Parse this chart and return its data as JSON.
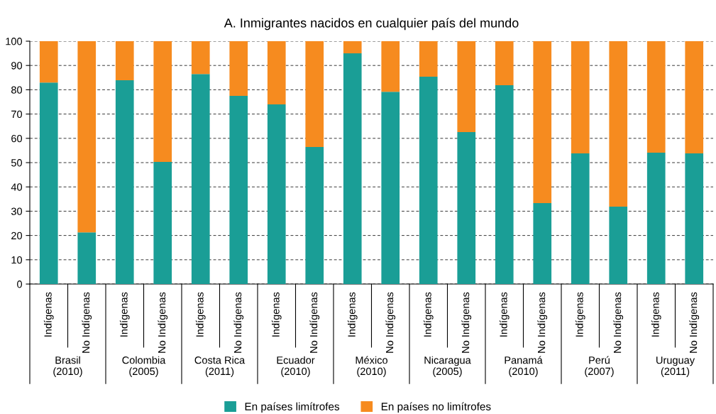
{
  "chart_data": {
    "type": "bar",
    "title": "A. Inmigrantes nacidos en cualquier país del mundo",
    "categories": [
      "Indígenas",
      "No Indígenas",
      "Indígenas",
      "No Indígenas",
      "Indígenas",
      "No Indígenas",
      "Indígenas",
      "No Indígenas",
      "Indígenas",
      "No Indígenas",
      "Indígenas",
      "No Indígenas",
      "Indígenas",
      "No Indígenas",
      "Indígenas",
      "No Indígenas",
      "Indígenas",
      "No Indígenas"
    ],
    "stacked": true,
    "series": [
      {
        "name": "En países limítrofes",
        "color": "#1a9e96",
        "values": [
          83.0,
          21.3,
          83.9,
          50.3,
          86.5,
          77.5,
          74.0,
          56.4,
          95.0,
          79.2,
          85.4,
          62.6,
          81.9,
          33.3,
          53.8,
          31.9,
          54.1,
          53.8
        ]
      },
      {
        "name": "En países no limítrofes",
        "color": "#f68b1f",
        "values": [
          17.0,
          78.7,
          16.1,
          49.7,
          13.5,
          22.5,
          26.0,
          43.6,
          5.0,
          20.8,
          14.6,
          37.4,
          18.1,
          66.7,
          46.2,
          68.1,
          45.9,
          46.2
        ]
      }
    ],
    "annotations": [
      "Brasil\n(2010)",
      "Colombia\n(2005)",
      "Costa Rica\n(2011)",
      "Ecuador\n(2010)",
      "México\n(2010)",
      "Nicaragua\n(2005)",
      "Panamá\n(2010)",
      "Perú\n(2007)",
      "Uruguay\n(2011)"
    ],
    "ylim": [
      0,
      100
    ],
    "yticks": [
      0,
      10,
      20,
      30,
      40,
      50,
      60,
      70,
      80,
      90,
      100
    ],
    "grid": "y",
    "legend": "bottom"
  }
}
